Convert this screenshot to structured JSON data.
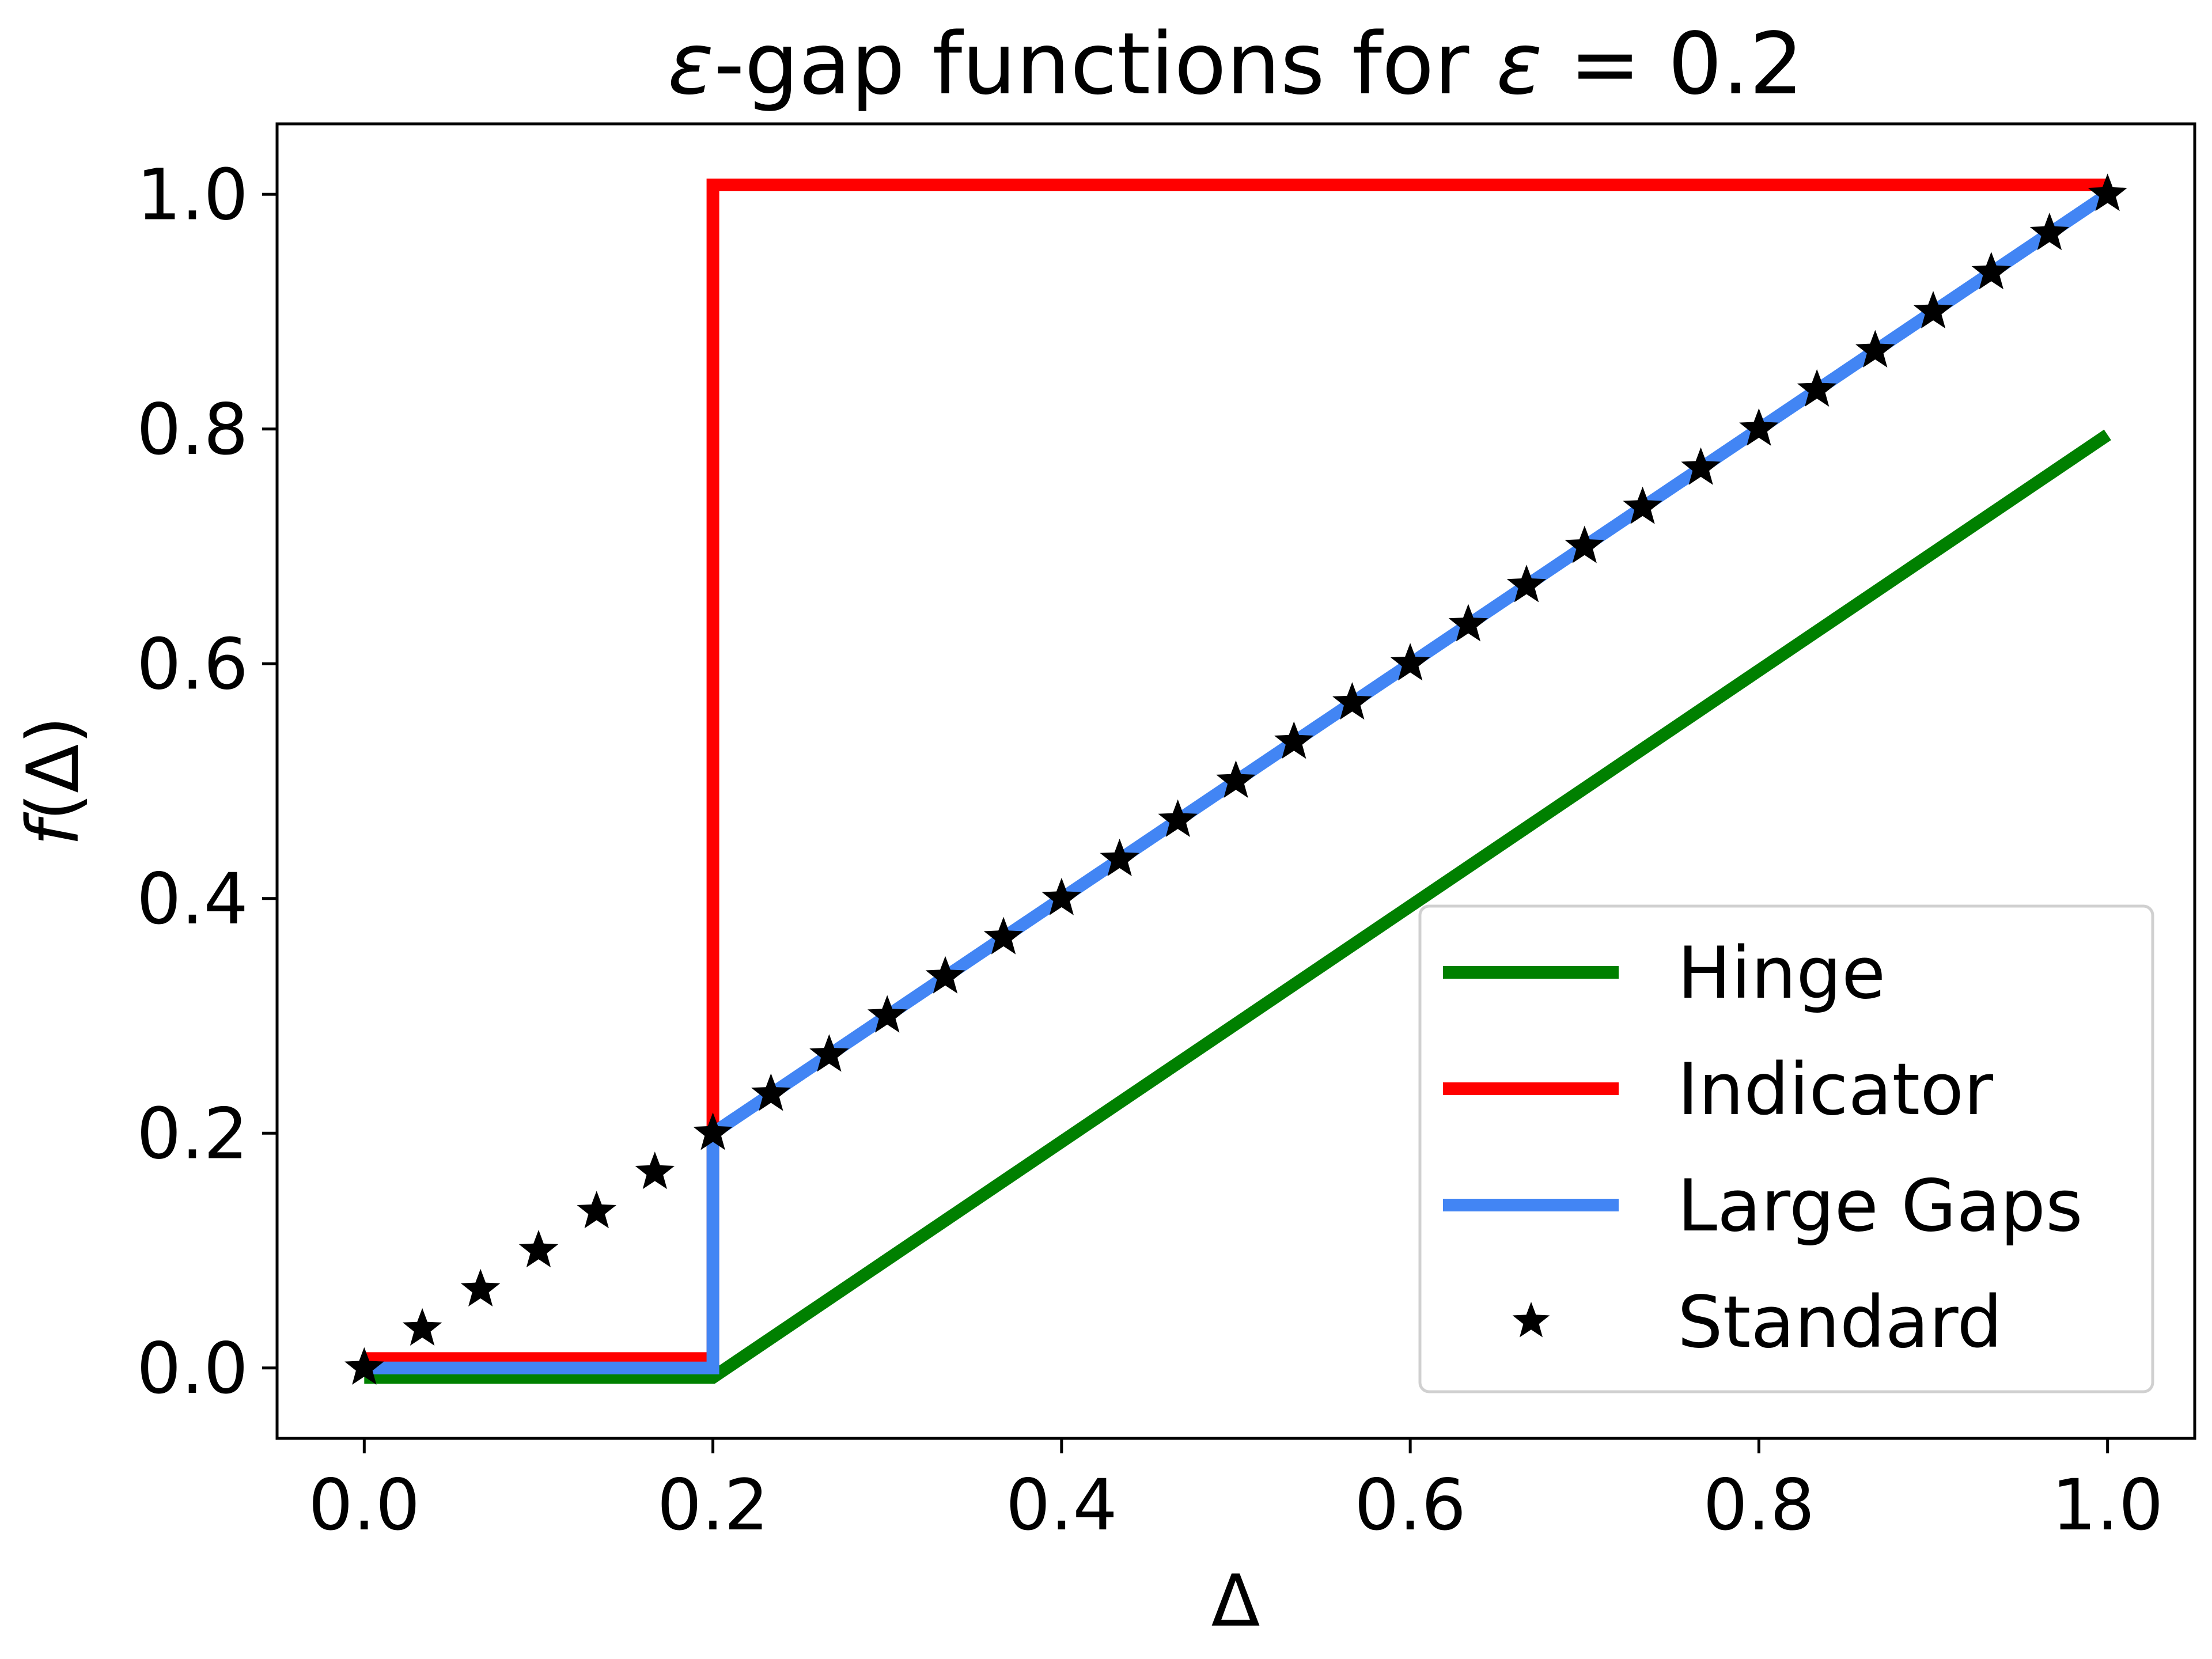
{
  "chart_data": {
    "type": "line",
    "title": "ε-gap functions for ε = 0.2",
    "title_main": "-gap functions for ",
    "title_eps": "ε",
    "title_tail": " = 0.2",
    "xlabel": "Δ",
    "ylabel": "f(Δ)",
    "ylabel_f": "f",
    "ylabel_rest": "(Δ)",
    "xlim": [
      -0.05,
      1.05
    ],
    "ylim": [
      -0.06,
      1.06
    ],
    "xticks": [
      0.0,
      0.2,
      0.4,
      0.6,
      0.8,
      1.0
    ],
    "xtick_labels": [
      "0.0",
      "0.2",
      "0.4",
      "0.6",
      "0.8",
      "1.0"
    ],
    "yticks": [
      0.0,
      0.2,
      0.4,
      0.6,
      0.8,
      1.0
    ],
    "ytick_labels": [
      "0.0",
      "0.2",
      "0.4",
      "0.6",
      "0.8",
      "1.0"
    ],
    "grid": false,
    "legend_position": "lower-right",
    "series": [
      {
        "name": "Hinge",
        "kind": "line",
        "color": "#008000",
        "x": [
          0.0,
          0.2,
          1.0
        ],
        "y": [
          -0.008,
          -0.008,
          0.795
        ]
      },
      {
        "name": "Indicator",
        "kind": "line",
        "color": "#ff0000",
        "x": [
          0.0,
          0.2,
          0.2,
          1.0
        ],
        "y": [
          0.008,
          0.008,
          1.008,
          1.008
        ]
      },
      {
        "name": "Large Gaps",
        "kind": "line",
        "color": "#4285f4",
        "x": [
          0.0,
          0.2,
          0.2,
          1.0
        ],
        "y": [
          0.0,
          0.0,
          0.2,
          1.0
        ]
      },
      {
        "name": "Standard",
        "kind": "markers",
        "marker": "star",
        "color": "#000000",
        "x": [
          0.0,
          0.0333,
          0.0667,
          0.1,
          0.1333,
          0.1667,
          0.2,
          0.2333,
          0.2667,
          0.3,
          0.3333,
          0.3667,
          0.4,
          0.4333,
          0.4667,
          0.5,
          0.5333,
          0.5667,
          0.6,
          0.6333,
          0.6667,
          0.7,
          0.7333,
          0.7667,
          0.8,
          0.8333,
          0.8667,
          0.9,
          0.9333,
          0.9667,
          1.0
        ],
        "y": [
          0.0,
          0.0333,
          0.0667,
          0.1,
          0.1333,
          0.1667,
          0.2,
          0.2333,
          0.2667,
          0.3,
          0.3333,
          0.3667,
          0.4,
          0.4333,
          0.4667,
          0.5,
          0.5333,
          0.5667,
          0.6,
          0.6333,
          0.6667,
          0.7,
          0.7333,
          0.7667,
          0.8,
          0.8333,
          0.8667,
          0.9,
          0.9333,
          0.9667,
          1.0
        ]
      }
    ]
  }
}
